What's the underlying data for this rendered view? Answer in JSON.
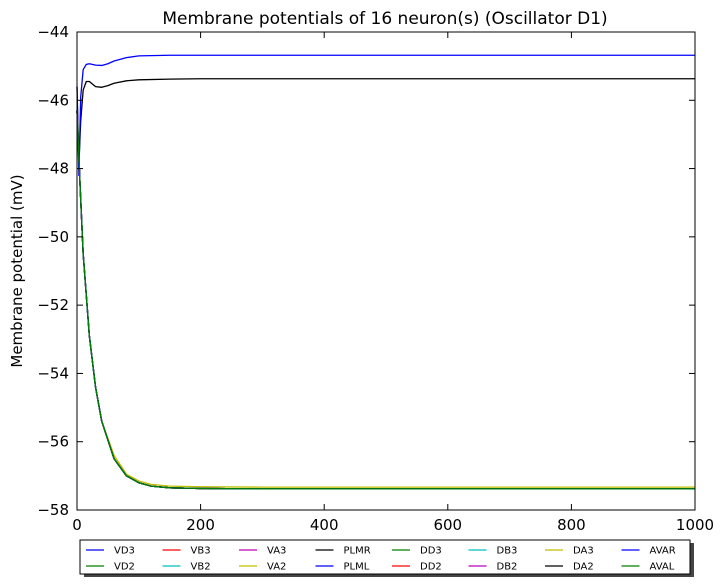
{
  "chart_data": {
    "type": "line",
    "title": "Membrane potentials of 16 neuron(s) (Oscillator D1)",
    "xlabel": "",
    "ylabel": "Membrane potential (mV)",
    "xlim": [
      0,
      1000
    ],
    "ylim": [
      -58,
      -44
    ],
    "xticks": [
      0,
      200,
      400,
      600,
      800,
      1000
    ],
    "yticks": [
      -58,
      -56,
      -54,
      -52,
      -50,
      -48,
      -46,
      -44
    ],
    "tick_labels_x": [
      "0",
      "200",
      "400",
      "600",
      "800",
      "1000"
    ],
    "tick_labels_y": [
      "−58",
      "−56",
      "−54",
      "−52",
      "−50",
      "−48",
      "−46",
      "−44"
    ],
    "grid": false,
    "legend_placement": "bottom, outside plot, 8 columns",
    "legend_order": [
      "VD3",
      "VD2",
      "VB3",
      "VB2",
      "VA3",
      "VA2",
      "PLMR",
      "PLML",
      "DD3",
      "DD2",
      "DB3",
      "DB2",
      "DA3",
      "DA2",
      "AVAR",
      "AVAL"
    ],
    "series": [
      {
        "name": "VD3",
        "color": "#0000ff",
        "x": [
          0,
          5,
          10,
          20,
          30,
          40,
          60,
          80,
          100,
          120,
          150,
          200,
          300,
          1000
        ],
        "y": [
          -46.3,
          -48.5,
          -50.5,
          -52.9,
          -54.4,
          -55.4,
          -56.5,
          -57.0,
          -57.2,
          -57.3,
          -57.35,
          -57.37,
          -57.38,
          -57.38
        ]
      },
      {
        "name": "VD2",
        "color": "#008000",
        "x": [
          0,
          5,
          10,
          20,
          30,
          40,
          60,
          80,
          100,
          120,
          150,
          200,
          300,
          1000
        ],
        "y": [
          -46.3,
          -48.5,
          -50.5,
          -52.9,
          -54.4,
          -55.4,
          -56.5,
          -57.0,
          -57.2,
          -57.3,
          -57.35,
          -57.37,
          -57.38,
          -57.38
        ]
      },
      {
        "name": "VB3",
        "color": "#ff0000",
        "x": [
          0,
          5,
          10,
          20,
          30,
          40,
          60,
          80,
          100,
          120,
          150,
          200,
          300,
          1000
        ],
        "y": [
          -46.3,
          -48.5,
          -50.5,
          -52.9,
          -54.4,
          -55.4,
          -56.5,
          -57.0,
          -57.2,
          -57.3,
          -57.35,
          -57.37,
          -57.38,
          -57.38
        ]
      },
      {
        "name": "VB2",
        "color": "#00bfbf",
        "x": [
          0,
          5,
          10,
          20,
          30,
          40,
          60,
          80,
          100,
          120,
          150,
          200,
          300,
          1000
        ],
        "y": [
          -46.3,
          -48.5,
          -50.5,
          -52.9,
          -54.4,
          -55.4,
          -56.5,
          -57.0,
          -57.2,
          -57.3,
          -57.35,
          -57.37,
          -57.38,
          -57.38
        ]
      },
      {
        "name": "VA3",
        "color": "#bf00bf",
        "x": [
          0,
          5,
          10,
          20,
          30,
          40,
          60,
          80,
          100,
          120,
          150,
          200,
          300,
          1000
        ],
        "y": [
          -46.3,
          -48.5,
          -50.5,
          -52.9,
          -54.4,
          -55.4,
          -56.5,
          -57.0,
          -57.2,
          -57.3,
          -57.35,
          -57.37,
          -57.38,
          -57.38
        ]
      },
      {
        "name": "VA2",
        "color": "#bfbf00",
        "x": [
          0,
          5,
          10,
          20,
          30,
          40,
          60,
          80,
          100,
          120,
          150,
          200,
          300,
          1000
        ],
        "y": [
          -46.3,
          -48.5,
          -50.5,
          -52.9,
          -54.4,
          -55.4,
          -56.4,
          -56.95,
          -57.15,
          -57.25,
          -57.3,
          -57.32,
          -57.33,
          -57.33
        ]
      },
      {
        "name": "PLMR",
        "color": "#000000",
        "x": [
          0,
          3,
          6,
          10,
          15,
          20,
          30,
          40,
          50,
          60,
          80,
          100,
          150,
          200,
          300,
          1000
        ],
        "y": [
          -45.6,
          -47.9,
          -46.6,
          -45.7,
          -45.45,
          -45.45,
          -45.6,
          -45.62,
          -45.57,
          -45.5,
          -45.43,
          -45.4,
          -45.38,
          -45.37,
          -45.37,
          -45.37
        ]
      },
      {
        "name": "PLML",
        "color": "#0000ff",
        "x": [
          0,
          3,
          6,
          10,
          15,
          20,
          30,
          40,
          50,
          60,
          80,
          100,
          150,
          200,
          300,
          1000
        ],
        "y": [
          -45.6,
          -48.2,
          -45.9,
          -45.1,
          -44.95,
          -44.93,
          -44.97,
          -44.98,
          -44.93,
          -44.85,
          -44.75,
          -44.7,
          -44.68,
          -44.68,
          -44.68,
          -44.68
        ]
      },
      {
        "name": "DD3",
        "color": "#008000",
        "x": [
          0,
          5,
          10,
          20,
          30,
          40,
          60,
          80,
          100,
          120,
          150,
          200,
          300,
          1000
        ],
        "y": [
          -46.3,
          -48.5,
          -50.5,
          -52.9,
          -54.4,
          -55.4,
          -56.5,
          -57.0,
          -57.2,
          -57.3,
          -57.35,
          -57.37,
          -57.38,
          -57.38
        ]
      },
      {
        "name": "DD2",
        "color": "#ff0000",
        "x": [
          0,
          5,
          10,
          20,
          30,
          40,
          60,
          80,
          100,
          120,
          150,
          200,
          300,
          1000
        ],
        "y": [
          -46.3,
          -48.5,
          -50.5,
          -52.9,
          -54.4,
          -55.4,
          -56.5,
          -57.0,
          -57.2,
          -57.3,
          -57.35,
          -57.37,
          -57.38,
          -57.38
        ]
      },
      {
        "name": "DB3",
        "color": "#00bfbf",
        "x": [
          0,
          5,
          10,
          20,
          30,
          40,
          60,
          80,
          100,
          120,
          150,
          200,
          300,
          1000
        ],
        "y": [
          -46.3,
          -48.5,
          -50.5,
          -52.9,
          -54.4,
          -55.4,
          -56.5,
          -57.0,
          -57.2,
          -57.3,
          -57.35,
          -57.37,
          -57.38,
          -57.38
        ]
      },
      {
        "name": "DB2",
        "color": "#bf00bf",
        "x": [
          0,
          5,
          10,
          20,
          30,
          40,
          60,
          80,
          100,
          120,
          150,
          200,
          300,
          1000
        ],
        "y": [
          -46.3,
          -48.5,
          -50.5,
          -52.9,
          -54.4,
          -55.4,
          -56.5,
          -57.0,
          -57.2,
          -57.3,
          -57.35,
          -57.37,
          -57.38,
          -57.38
        ]
      },
      {
        "name": "DA3",
        "color": "#bfbf00",
        "x": [
          0,
          5,
          10,
          20,
          30,
          40,
          60,
          80,
          100,
          120,
          150,
          200,
          300,
          1000
        ],
        "y": [
          -46.3,
          -48.5,
          -50.5,
          -52.9,
          -54.4,
          -55.4,
          -56.5,
          -57.0,
          -57.2,
          -57.3,
          -57.35,
          -57.37,
          -57.38,
          -57.38
        ]
      },
      {
        "name": "DA2",
        "color": "#000000",
        "x": [
          0,
          5,
          10,
          20,
          30,
          40,
          60,
          80,
          100,
          120,
          150,
          200,
          300,
          1000
        ],
        "y": [
          -46.3,
          -48.5,
          -50.5,
          -52.9,
          -54.4,
          -55.4,
          -56.5,
          -57.0,
          -57.2,
          -57.3,
          -57.35,
          -57.37,
          -57.38,
          -57.38
        ]
      },
      {
        "name": "AVAR",
        "color": "#0000ff",
        "x": [
          0,
          5,
          10,
          20,
          30,
          40,
          60,
          80,
          100,
          120,
          150,
          200,
          300,
          1000
        ],
        "y": [
          -46.3,
          -48.5,
          -50.5,
          -52.9,
          -54.4,
          -55.4,
          -56.5,
          -57.0,
          -57.2,
          -57.3,
          -57.35,
          -57.37,
          -57.38,
          -57.38
        ]
      },
      {
        "name": "AVAL",
        "color": "#008000",
        "x": [
          0,
          5,
          10,
          20,
          30,
          40,
          60,
          80,
          100,
          120,
          150,
          200,
          300,
          1000
        ],
        "y": [
          -46.3,
          -48.5,
          -50.5,
          -52.9,
          -54.4,
          -55.4,
          -56.5,
          -57.0,
          -57.2,
          -57.3,
          -57.35,
          -57.37,
          -57.38,
          -57.38
        ]
      }
    ]
  }
}
